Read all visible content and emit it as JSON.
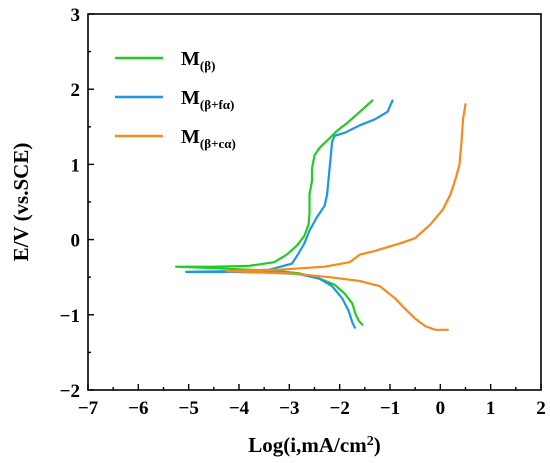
{
  "chart_data": {
    "type": "line",
    "title": "",
    "xlabel": "Log(i,mA/cm",
    "xlabel_sup": "2",
    "xlabel_close": ")",
    "ylabel": "E/V (vs.SCE)",
    "xlim": [
      -7,
      2
    ],
    "ylim": [
      -2,
      3
    ],
    "x_ticks": [
      "−7",
      "−6",
      "−5",
      "−4",
      "−3",
      "−2",
      "−1",
      "0",
      "1",
      "2"
    ],
    "y_ticks": [
      "−2",
      "−1",
      "0",
      "1",
      "2",
      "3"
    ],
    "legend_placement": "top-left",
    "grid": false,
    "series": [
      {
        "name_main": "M",
        "name_sub": "(β)",
        "color": "#22cc22",
        "points": [
          [
            -1.35,
            1.85
          ],
          [
            -1.6,
            1.7
          ],
          [
            -1.85,
            1.55
          ],
          [
            -2.05,
            1.45
          ],
          [
            -2.2,
            1.35
          ],
          [
            -2.4,
            1.22
          ],
          [
            -2.5,
            1.12
          ],
          [
            -2.55,
            0.95
          ],
          [
            -2.55,
            0.78
          ],
          [
            -2.6,
            0.6
          ],
          [
            -2.6,
            0.35
          ],
          [
            -2.62,
            0.2
          ],
          [
            -2.7,
            0.05
          ],
          [
            -2.85,
            -0.08
          ],
          [
            -3.05,
            -0.2
          ],
          [
            -3.3,
            -0.3
          ],
          [
            -3.8,
            -0.35
          ],
          [
            -4.5,
            -0.36
          ],
          [
            -5.25,
            -0.36
          ],
          [
            -4.5,
            -0.38
          ],
          [
            -3.8,
            -0.4
          ],
          [
            -3.2,
            -0.42
          ],
          [
            -2.8,
            -0.45
          ],
          [
            -2.4,
            -0.52
          ],
          [
            -2.1,
            -0.6
          ],
          [
            -1.9,
            -0.72
          ],
          [
            -1.75,
            -0.85
          ],
          [
            -1.68,
            -1.0
          ],
          [
            -1.62,
            -1.08
          ],
          [
            -1.55,
            -1.13
          ]
        ]
      },
      {
        "name_main": "M",
        "name_sub": "(β+fα)",
        "color": "#1e96e6",
        "points": [
          [
            -0.95,
            1.85
          ],
          [
            -1.05,
            1.7
          ],
          [
            -1.3,
            1.6
          ],
          [
            -1.6,
            1.52
          ],
          [
            -1.9,
            1.42
          ],
          [
            -2.1,
            1.38
          ],
          [
            -2.15,
            1.3
          ],
          [
            -2.2,
            0.95
          ],
          [
            -2.25,
            0.6
          ],
          [
            -2.3,
            0.45
          ],
          [
            -2.45,
            0.3
          ],
          [
            -2.6,
            0.12
          ],
          [
            -2.7,
            -0.05
          ],
          [
            -2.85,
            -0.22
          ],
          [
            -2.95,
            -0.32
          ],
          [
            -3.4,
            -0.4
          ],
          [
            -4.2,
            -0.42
          ],
          [
            -5.05,
            -0.43
          ],
          [
            -4.2,
            -0.43
          ],
          [
            -3.4,
            -0.44
          ],
          [
            -2.8,
            -0.46
          ],
          [
            -2.4,
            -0.52
          ],
          [
            -2.15,
            -0.62
          ],
          [
            -1.95,
            -0.78
          ],
          [
            -1.82,
            -0.95
          ],
          [
            -1.75,
            -1.1
          ],
          [
            -1.7,
            -1.17
          ]
        ]
      },
      {
        "name_main": "M",
        "name_sub": "(β+cα)",
        "color": "#f78a1c",
        "points": [
          [
            0.5,
            1.8
          ],
          [
            0.45,
            1.6
          ],
          [
            0.42,
            1.3
          ],
          [
            0.38,
            1.0
          ],
          [
            0.3,
            0.8
          ],
          [
            0.2,
            0.6
          ],
          [
            0.05,
            0.4
          ],
          [
            -0.2,
            0.2
          ],
          [
            -0.5,
            0.02
          ],
          [
            -0.8,
            -0.05
          ],
          [
            -1.3,
            -0.15
          ],
          [
            -1.6,
            -0.2
          ],
          [
            -1.8,
            -0.3
          ],
          [
            -2.3,
            -0.36
          ],
          [
            -3.2,
            -0.4
          ],
          [
            -3.8,
            -0.41
          ],
          [
            -4.25,
            -0.42
          ],
          [
            -3.8,
            -0.43
          ],
          [
            -3.0,
            -0.45
          ],
          [
            -2.2,
            -0.5
          ],
          [
            -1.6,
            -0.55
          ],
          [
            -1.2,
            -0.62
          ],
          [
            -0.9,
            -0.78
          ],
          [
            -0.7,
            -0.92
          ],
          [
            -0.5,
            -1.05
          ],
          [
            -0.3,
            -1.15
          ],
          [
            -0.1,
            -1.2
          ],
          [
            0.15,
            -1.2
          ]
        ]
      }
    ]
  }
}
